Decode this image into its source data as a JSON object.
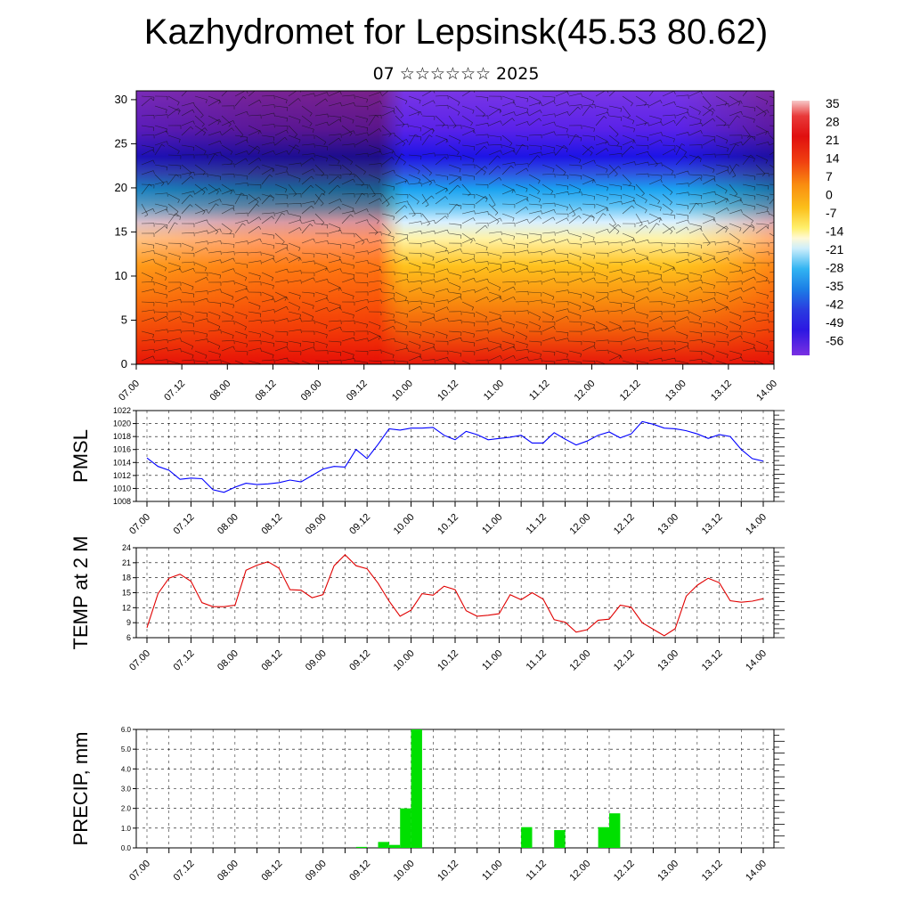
{
  "header": {
    "title": "Kazhydromet for Lepsinsk(45.53 80.62)",
    "subtitle": "07 ☆☆☆☆☆☆ 2025"
  },
  "colorbar": {
    "labels": [
      "35",
      "28",
      "21",
      "14",
      "7",
      "0",
      "-7",
      "-14",
      "-21",
      "-28",
      "-35",
      "-42",
      "-49",
      "-56"
    ]
  },
  "chart_data": [
    {
      "type": "heatmap",
      "title": "Kazhydromet for Lepsinsk(45.53 80.62)",
      "subtitle": "07 ☆☆☆☆☆☆ 2025",
      "ylim": [
        0,
        31
      ],
      "yticks": [
        0,
        5,
        10,
        15,
        20,
        25,
        30
      ],
      "xlim": [
        0,
        168
      ],
      "x_ticks": [
        "07.00",
        "07.12",
        "08.00",
        "08.12",
        "09.00",
        "09.12",
        "10.00",
        "10.12",
        "11.00",
        "11.12",
        "12.00",
        "12.12",
        "13.00",
        "13.12",
        "14.00"
      ],
      "colorbar_range": [
        -63,
        42
      ],
      "overlay": "wind barbs",
      "grid": false
    },
    {
      "type": "line",
      "ylabel": "PMSL",
      "ylim": [
        1008,
        1022
      ],
      "yticks": [
        1008,
        1010,
        1012,
        1014,
        1016,
        1018,
        1020,
        1022
      ],
      "x_ticks": [
        "07.00",
        "07.12",
        "08.00",
        "08.12",
        "09.00",
        "09.12",
        "10.00",
        "10.12",
        "11.00",
        "11.12",
        "12.00",
        "12.12",
        "13.00",
        "13.12",
        "14.00"
      ],
      "x_hours": [
        0,
        3,
        6,
        9,
        12,
        15,
        18,
        21,
        24,
        27,
        30,
        33,
        36,
        39,
        42,
        45,
        48,
        51,
        54,
        57,
        60,
        63,
        66,
        69,
        72,
        75,
        78,
        81,
        84,
        87,
        90,
        93,
        96,
        99,
        102,
        105,
        108,
        111,
        114,
        117,
        120,
        123,
        126,
        129,
        132,
        135,
        138,
        141,
        144,
        147,
        150,
        153,
        156,
        159,
        162,
        165,
        168
      ],
      "series": [
        {
          "color": "#0000ff",
          "values": [
            1014.7,
            1013.4,
            1012.8,
            1011.4,
            1011.6,
            1011.5,
            1009.8,
            1009.4,
            1010.2,
            1010.8,
            1010.6,
            1010.7,
            1010.9,
            1011.3,
            1011.0,
            1012.0,
            1013.0,
            1013.4,
            1013.3,
            1016.0,
            1014.6,
            1016.8,
            1019.2,
            1019.0,
            1019.3,
            1019.3,
            1019.4,
            1018.2,
            1017.5,
            1018.8,
            1018.3,
            1017.5,
            1017.7,
            1017.9,
            1018.2,
            1017.0,
            1017.0,
            1018.6,
            1017.6,
            1016.7,
            1017.3,
            1018.2,
            1018.7,
            1017.8,
            1018.4,
            1020.3,
            1019.9,
            1019.3,
            1019.2,
            1018.9,
            1018.4,
            1017.7,
            1018.3,
            1018.0,
            1016.0,
            1014.6,
            1014.2
          ]
        }
      ],
      "grid": true
    },
    {
      "type": "line",
      "ylabel": "TEMP at 2 M",
      "ylim": [
        6,
        24
      ],
      "yticks": [
        6,
        9,
        12,
        15,
        18,
        21,
        24
      ],
      "x_ticks": [
        "07.00",
        "07.12",
        "08.00",
        "08.12",
        "09.00",
        "09.12",
        "10.00",
        "10.12",
        "11.00",
        "11.12",
        "12.00",
        "12.12",
        "13.00",
        "13.12",
        "14.00"
      ],
      "x_hours": [
        0,
        3,
        6,
        9,
        12,
        15,
        18,
        21,
        24,
        27,
        30,
        33,
        36,
        39,
        42,
        45,
        48,
        51,
        54,
        57,
        60,
        63,
        66,
        69,
        72,
        75,
        78,
        81,
        84,
        87,
        90,
        93,
        96,
        99,
        102,
        105,
        108,
        111,
        114,
        117,
        120,
        123,
        126,
        129,
        132,
        135,
        138,
        141,
        144,
        147,
        150,
        153,
        156,
        159,
        162,
        165,
        168
      ],
      "series": [
        {
          "color": "#e00000",
          "values": [
            8.0,
            14.8,
            17.9,
            18.7,
            17.3,
            13.0,
            12.2,
            12.2,
            12.5,
            19.5,
            20.5,
            21.2,
            19.9,
            15.6,
            15.5,
            14.0,
            14.6,
            20.4,
            22.6,
            20.4,
            19.8,
            16.9,
            13.3,
            10.3,
            11.5,
            14.8,
            14.5,
            16.3,
            15.6,
            11.4,
            10.3,
            10.5,
            10.8,
            14.6,
            13.6,
            15.0,
            13.7,
            9.6,
            9.1,
            7.1,
            7.6,
            9.5,
            9.7,
            12.5,
            12.1,
            9.0,
            7.7,
            6.4,
            7.8,
            14.3,
            16.5,
            17.9,
            17.0,
            13.4,
            13.1,
            13.3,
            13.8
          ]
        }
      ],
      "grid": true
    },
    {
      "type": "bar",
      "ylabel": "PRECIP, mm",
      "ylim": [
        0,
        6.0
      ],
      "yticks": [
        "0.0",
        "1.0",
        "2.0",
        "3.0",
        "4.0",
        "5.0",
        "6.0"
      ],
      "x_ticks": [
        "07.00",
        "07.12",
        "08.00",
        "08.12",
        "09.00",
        "09.12",
        "10.00",
        "10.12",
        "11.00",
        "11.12",
        "12.00",
        "12.12",
        "13.00",
        "13.12",
        "14.00"
      ],
      "bar_width_hours": 3,
      "bars": [
        {
          "x_hours": 57,
          "value": 0.05
        },
        {
          "x_hours": 63,
          "value": 0.3
        },
        {
          "x_hours": 66,
          "value": 0.15
        },
        {
          "x_hours": 69,
          "value": 2.0
        },
        {
          "x_hours": 72,
          "value": 6.0
        },
        {
          "x_hours": 102,
          "value": 1.05
        },
        {
          "x_hours": 111,
          "value": 0.9
        },
        {
          "x_hours": 123,
          "value": 1.05
        },
        {
          "x_hours": 126,
          "value": 1.75
        }
      ],
      "color": "#00e000",
      "grid": true
    }
  ]
}
